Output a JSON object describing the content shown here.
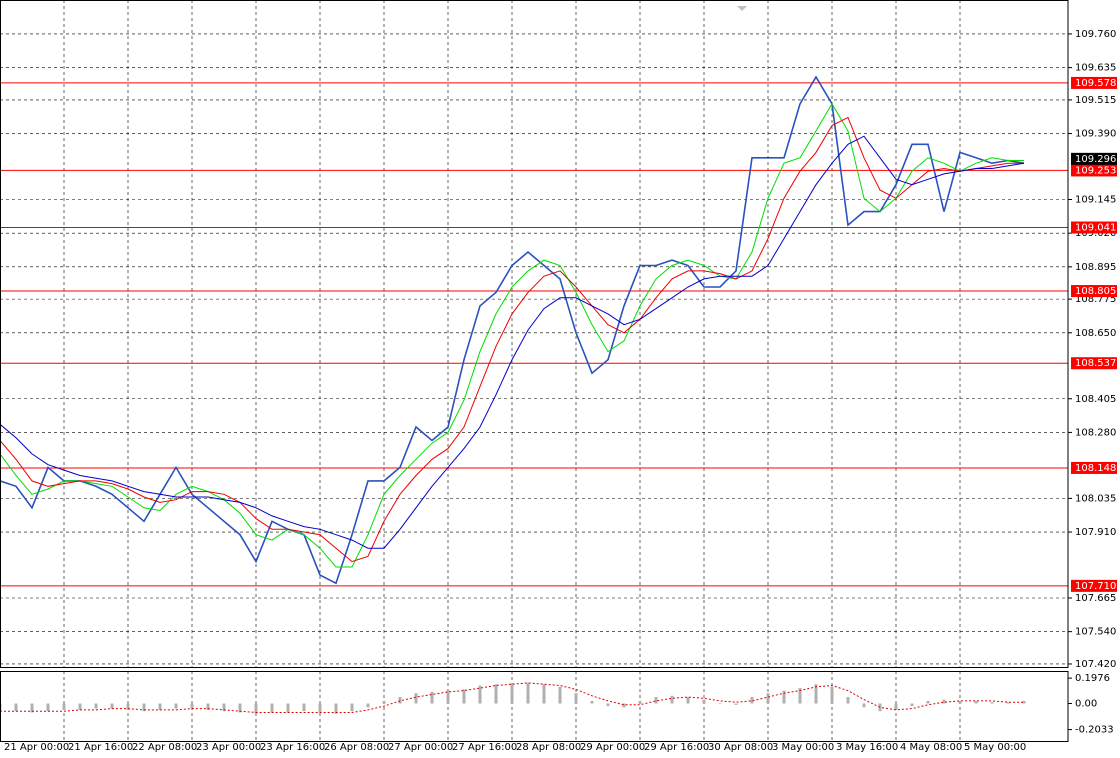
{
  "chart_data": [
    {
      "type": "line",
      "categories": [
        "21 Apr 00:00",
        null,
        null,
        null,
        "21 Apr 16:00",
        null,
        null,
        null,
        "22 Apr 08:00",
        null,
        null,
        null,
        "23 Apr 00:00",
        null,
        null,
        null,
        "23 Apr 16:00",
        null,
        null,
        null,
        "26 Apr 08:00",
        null,
        null,
        null,
        "27 Apr 00:00",
        null,
        null,
        null,
        "27 Apr 16:00",
        null,
        null,
        null,
        "28 Apr 08:00",
        null,
        null,
        null,
        "29 Apr 00:00",
        null,
        null,
        null,
        "29 Apr 16:00",
        null,
        null,
        null,
        "30 Apr 08:00",
        null,
        null,
        null,
        "3 May 00:00",
        null,
        null,
        null,
        "3 May 16:00",
        null,
        null,
        null,
        "4 May 08:00",
        null,
        null,
        null,
        "5 May 00:00",
        null,
        null,
        null,
        null
      ],
      "series": [
        {
          "color": "#2a52be",
          "values": [
            108.1,
            108.08,
            108.0,
            108.15,
            108.1,
            108.1,
            108.08,
            108.05,
            108.0,
            107.95,
            108.05,
            108.15,
            108.05,
            108.0,
            107.95,
            107.9,
            107.8,
            107.95,
            107.92,
            107.9,
            107.75,
            107.72,
            107.9,
            108.1,
            108.1,
            108.15,
            108.3,
            108.25,
            108.3,
            108.55,
            108.75,
            108.8,
            108.9,
            108.95,
            108.9,
            108.85,
            108.65,
            108.5,
            108.55,
            108.75,
            108.9,
            108.9,
            108.92,
            108.9,
            108.82,
            108.82,
            108.88,
            109.3,
            109.3,
            109.3,
            109.5,
            109.6,
            109.5,
            109.05,
            109.1,
            109.1,
            109.2,
            109.35,
            109.35,
            109.1,
            109.32,
            109.3,
            109.28,
            109.29,
            109.28
          ]
        },
        {
          "color": "#00dd00",
          "values": [
            108.2,
            108.12,
            108.05,
            108.07,
            108.1,
            108.1,
            108.09,
            108.08,
            108.04,
            108.0,
            107.99,
            108.05,
            108.08,
            108.06,
            108.03,
            107.98,
            107.9,
            107.88,
            107.92,
            107.9,
            107.85,
            107.78,
            107.78,
            107.9,
            108.05,
            108.12,
            108.18,
            108.24,
            108.28,
            108.4,
            108.58,
            108.72,
            108.82,
            108.88,
            108.92,
            108.9,
            108.8,
            108.68,
            108.58,
            108.62,
            108.75,
            108.85,
            108.9,
            108.92,
            108.9,
            108.86,
            108.85,
            108.95,
            109.15,
            109.28,
            109.3,
            109.4,
            109.5,
            109.4,
            109.15,
            109.1,
            109.15,
            109.25,
            109.3,
            109.28,
            109.25,
            109.28,
            109.3,
            109.29,
            109.29
          ]
        },
        {
          "color": "#ee0000",
          "values": [
            108.25,
            108.18,
            108.1,
            108.08,
            108.09,
            108.1,
            108.1,
            108.09,
            108.07,
            108.04,
            108.02,
            108.03,
            108.06,
            108.06,
            108.05,
            108.02,
            107.96,
            107.92,
            107.92,
            107.91,
            107.9,
            107.85,
            107.8,
            107.82,
            107.95,
            108.05,
            108.12,
            108.18,
            108.22,
            108.3,
            108.45,
            108.6,
            108.72,
            108.8,
            108.86,
            108.88,
            108.82,
            108.75,
            108.68,
            108.65,
            108.7,
            108.78,
            108.85,
            108.88,
            108.88,
            108.87,
            108.85,
            108.88,
            109.0,
            109.15,
            109.25,
            109.32,
            109.42,
            109.45,
            109.3,
            109.18,
            109.15,
            109.2,
            109.25,
            109.26,
            109.25,
            109.26,
            109.27,
            109.28,
            109.28
          ]
        },
        {
          "color": "#0000cc",
          "values": [
            108.31,
            108.26,
            108.2,
            108.16,
            108.14,
            108.12,
            108.11,
            108.1,
            108.08,
            108.06,
            108.05,
            108.04,
            108.04,
            108.04,
            108.03,
            108.02,
            108.0,
            107.97,
            107.95,
            107.93,
            107.92,
            107.9,
            107.88,
            107.85,
            107.85,
            107.92,
            108.0,
            108.08,
            108.15,
            108.22,
            108.3,
            108.42,
            108.55,
            108.66,
            108.74,
            108.78,
            108.78,
            108.75,
            108.72,
            108.68,
            108.7,
            108.74,
            108.78,
            108.82,
            108.85,
            108.86,
            108.86,
            108.86,
            108.9,
            109.0,
            109.1,
            109.2,
            109.28,
            109.35,
            109.38,
            109.3,
            109.22,
            109.2,
            109.22,
            109.24,
            109.25,
            109.26,
            109.26,
            109.27,
            109.28
          ]
        }
      ],
      "ylim": [
        107.405,
        109.886
      ],
      "yticks": [
        {
          "value": 109.76,
          "label": "109.760"
        },
        109.635,
        109.515,
        {
          "value": 109.39,
          "label": "109.390"
        },
        109.145,
        {
          "value": 109.02,
          "label": "109.020"
        },
        108.895,
        108.775,
        {
          "value": 108.65,
          "label": "108.650"
        },
        108.405,
        {
          "value": 108.28,
          "label": "108.280"
        },
        108.035,
        {
          "value": 107.91,
          "label": "107.910"
        },
        107.665,
        {
          "value": 107.54,
          "label": "107.540"
        },
        {
          "value": 107.42,
          "label": "107.420"
        }
      ],
      "levels": [
        109.578,
        109.253,
        109.041,
        108.805,
        108.537,
        108.148,
        {
          "value": 107.71,
          "label": "107.710"
        }
      ],
      "level_color": "#ff0000",
      "current_price": 109.296,
      "grid": true
    },
    {
      "type": "histogram-oscillator",
      "series": [
        {
          "color": "#b0b0b0",
          "values": [
            -0.05,
            -0.06,
            -0.07,
            -0.06,
            -0.05,
            -0.05,
            -0.04,
            -0.04,
            -0.05,
            -0.06,
            -0.05,
            -0.04,
            -0.04,
            -0.05,
            -0.06,
            -0.07,
            -0.08,
            -0.07,
            -0.07,
            -0.06,
            -0.07,
            -0.08,
            -0.06,
            -0.03,
            0.02,
            0.05,
            0.08,
            0.09,
            0.1,
            0.11,
            0.14,
            0.15,
            0.16,
            0.16,
            0.15,
            0.13,
            0.08,
            0.02,
            -0.02,
            -0.03,
            0.02,
            0.05,
            0.06,
            0.05,
            0.03,
            0.0,
            -0.01,
            0.05,
            0.08,
            0.1,
            0.12,
            0.15,
            0.13,
            0.05,
            -0.03,
            -0.06,
            -0.05,
            -0.02,
            0.02,
            0.03,
            0.02,
            0.02,
            0.01,
            0.01,
            0.02
          ]
        },
        {
          "color": "#dd0000",
          "values": [
            -0.06,
            -0.06,
            -0.06,
            -0.06,
            -0.06,
            -0.05,
            -0.05,
            -0.04,
            -0.04,
            -0.05,
            -0.05,
            -0.05,
            -0.04,
            -0.04,
            -0.05,
            -0.06,
            -0.07,
            -0.07,
            -0.07,
            -0.07,
            -0.07,
            -0.07,
            -0.07,
            -0.05,
            -0.02,
            0.02,
            0.05,
            0.07,
            0.09,
            0.1,
            0.12,
            0.14,
            0.15,
            0.16,
            0.15,
            0.14,
            0.11,
            0.06,
            0.02,
            -0.01,
            -0.01,
            0.02,
            0.04,
            0.05,
            0.04,
            0.02,
            0.01,
            0.02,
            0.05,
            0.08,
            0.1,
            0.13,
            0.14,
            0.1,
            0.03,
            -0.03,
            -0.05,
            -0.04,
            -0.01,
            0.01,
            0.02,
            0.02,
            0.02,
            0.01,
            0.01
          ]
        }
      ],
      "ylim": [
        -0.3,
        0.253
      ],
      "yticks": [
        0.1976,
        {
          "value": 0,
          "label": "0.00"
        },
        -0.2033
      ]
    }
  ]
}
